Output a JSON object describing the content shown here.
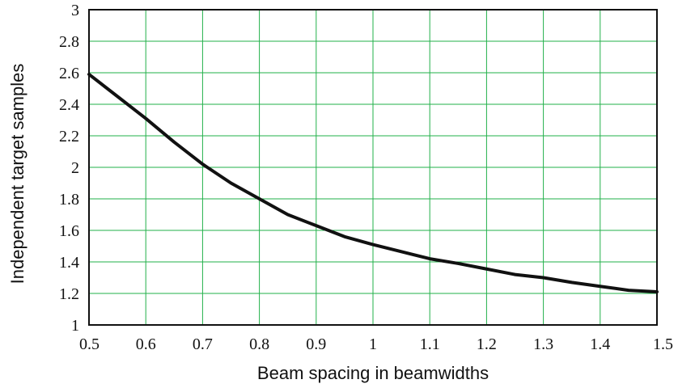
{
  "chart_data": {
    "type": "line",
    "title": "",
    "xlabel": "Beam spacing in beamwidths",
    "ylabel": "Independent target samples",
    "xlim": [
      0.5,
      1.5
    ],
    "ylim": [
      1,
      3
    ],
    "x_ticks": [
      "0.5",
      "0.6",
      "0.7",
      "0.8",
      "0.9",
      "1",
      "1.1",
      "1.2",
      "1.3",
      "1.4",
      "1.5"
    ],
    "y_ticks": [
      "1",
      "1.2",
      "1.4",
      "1.6",
      "1.8",
      "2",
      "2.2",
      "2.4",
      "2.6",
      "2.8",
      "3"
    ],
    "grid": true,
    "legend": "none",
    "colors": {
      "grid": "#22b04a",
      "line": "#111111",
      "frame": "#111111"
    },
    "series": [
      {
        "x": [
          0.5,
          0.55,
          0.6,
          0.65,
          0.7,
          0.75,
          0.8,
          0.85,
          0.9,
          0.95,
          1.0,
          1.05,
          1.1,
          1.15,
          1.2,
          1.25,
          1.3,
          1.35,
          1.4,
          1.45,
          1.5
        ],
        "y": [
          2.59,
          2.45,
          2.31,
          2.16,
          2.02,
          1.9,
          1.8,
          1.7,
          1.63,
          1.56,
          1.51,
          1.465,
          1.42,
          1.39,
          1.355,
          1.32,
          1.3,
          1.27,
          1.245,
          1.22,
          1.21
        ]
      }
    ]
  }
}
